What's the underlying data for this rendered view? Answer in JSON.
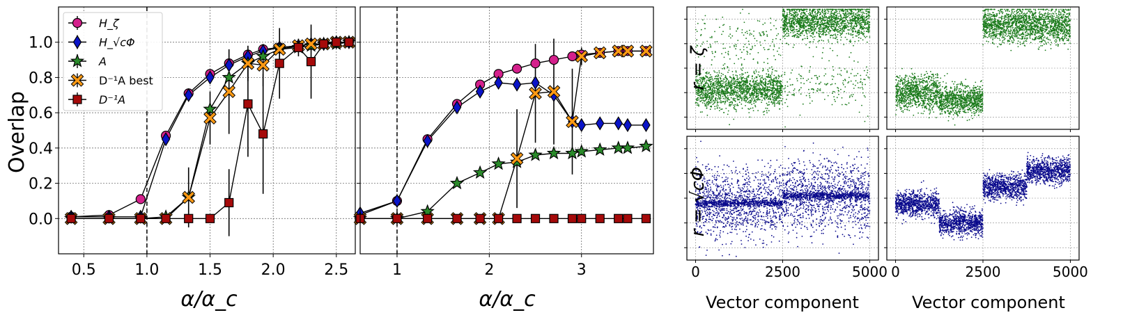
{
  "figure": {
    "ylabel_left": "Overlap",
    "xlabel_left": "α/α_c",
    "xlabel_mid": "α/α_c",
    "xlabel_scatter": "Vector component",
    "row_label_top": "r = ζ",
    "row_label_bottom": "r = √cΦ"
  },
  "legend": {
    "placement": "top-left",
    "entries": [
      {
        "id": "hz",
        "label": "H_ζ",
        "marker": "circle",
        "color": "#d4208c"
      },
      {
        "id": "hphi",
        "label": "H_√cΦ",
        "marker": "diamond",
        "color": "#0a14c8"
      },
      {
        "id": "a",
        "label": "A",
        "marker": "star",
        "color": "#2a8a2a"
      },
      {
        "id": "dab",
        "label": "D⁻¹A best",
        "marker": "x",
        "color": "#ff9a14"
      },
      {
        "id": "da",
        "label": "D⁻¹A",
        "marker": "square",
        "color": "#a50a0a"
      }
    ]
  },
  "chart_data": [
    {
      "type": "line",
      "panel": "left",
      "xlabel": "α/α_c",
      "ylabel": "Overlap",
      "xlim": [
        0.3,
        2.65
      ],
      "ylim": [
        -0.2,
        1.2
      ],
      "xticks": [
        0.5,
        1.0,
        1.5,
        2.0,
        2.5
      ],
      "xtick_labels": [
        "0.5",
        "1.0",
        "1.5",
        "2.0",
        "2.5"
      ],
      "yticks": [
        0.0,
        0.2,
        0.4,
        0.6,
        0.8,
        1.0
      ],
      "ytick_labels": [
        "0.0",
        "0.2",
        "0.4",
        "0.6",
        "0.8",
        "1.0"
      ],
      "grid": true,
      "vline": 1.0,
      "series": [
        {
          "name": "H_ζ",
          "id": "hz",
          "x": [
            0.4,
            0.7,
            0.95,
            1.15,
            1.33,
            1.5,
            1.65,
            1.8,
            1.92,
            2.05,
            2.2,
            2.3,
            2.4,
            2.5,
            2.6
          ],
          "y": [
            0.01,
            0.02,
            0.11,
            0.47,
            0.71,
            0.82,
            0.88,
            0.93,
            0.96,
            0.97,
            0.98,
            0.99,
            0.99,
            1.0,
            1.0
          ]
        },
        {
          "name": "H_√cΦ",
          "id": "hphi",
          "x": [
            0.4,
            0.7,
            0.95,
            1.15,
            1.33,
            1.5,
            1.65,
            1.8,
            1.92,
            2.05,
            2.2,
            2.3,
            2.4,
            2.5,
            2.6
          ],
          "y": [
            0.01,
            0.01,
            0.01,
            0.45,
            0.7,
            0.8,
            0.87,
            0.92,
            0.95,
            0.97,
            0.98,
            0.99,
            0.99,
            1.0,
            1.0
          ]
        },
        {
          "name": "A",
          "id": "a",
          "x": [
            0.4,
            0.7,
            0.95,
            1.15,
            1.33,
            1.5,
            1.65,
            1.8,
            1.92,
            2.05,
            2.2,
            2.3,
            2.4,
            2.5,
            2.6
          ],
          "y": [
            0.0,
            0.0,
            0.0,
            0.01,
            0.12,
            0.62,
            0.8,
            0.88,
            0.92,
            0.96,
            0.97,
            0.98,
            0.99,
            0.99,
            1.0
          ]
        },
        {
          "name": "D⁻¹A best",
          "id": "dab",
          "x": [
            0.4,
            0.7,
            0.95,
            1.15,
            1.33,
            1.5,
            1.65,
            1.8,
            1.92,
            2.05,
            2.2,
            2.3,
            2.4,
            2.5,
            2.6
          ],
          "y": [
            0.0,
            0.0,
            0.0,
            0.0,
            0.12,
            0.57,
            0.72,
            0.88,
            0.87,
            0.96,
            0.98,
            0.99,
            0.99,
            1.0,
            1.0
          ],
          "err": [
            0.01,
            0.0,
            0.0,
            0.0,
            0.17,
            0.15,
            0.24,
            0.1,
            0.12,
            0.05,
            0.02,
            0.02,
            0.01,
            0.01,
            0.0
          ]
        },
        {
          "name": "D⁻¹A",
          "id": "da",
          "x": [
            0.4,
            0.7,
            0.95,
            1.15,
            1.33,
            1.5,
            1.65,
            1.8,
            1.92,
            2.05,
            2.2,
            2.3,
            2.4,
            2.5,
            2.6
          ],
          "y": [
            0.0,
            0.0,
            0.0,
            0.0,
            0.0,
            0.0,
            0.09,
            0.65,
            0.48,
            0.88,
            0.97,
            0.89,
            0.99,
            1.0,
            1.0
          ],
          "err": [
            0.0,
            0.0,
            0.0,
            0.0,
            0.0,
            0.0,
            0.19,
            0.3,
            0.34,
            0.2,
            0.05,
            0.21,
            0.02,
            0.01,
            0.0
          ]
        }
      ]
    },
    {
      "type": "line",
      "panel": "middle",
      "xlabel": "α/α_c",
      "ylabel": "",
      "xlim": [
        0.6,
        3.78
      ],
      "ylim": [
        -0.2,
        1.2
      ],
      "xticks": [
        1,
        2,
        3
      ],
      "xtick_labels": [
        "1",
        "2",
        "3"
      ],
      "yticks": [
        0.0,
        0.2,
        0.4,
        0.6,
        0.8,
        1.0
      ],
      "grid": true,
      "vline": 1.0,
      "series": [
        {
          "name": "H_ζ",
          "id": "hz",
          "x": [
            0.6,
            1.0,
            1.33,
            1.65,
            1.9,
            2.1,
            2.3,
            2.5,
            2.7,
            2.9,
            3.0,
            3.2,
            3.4,
            3.5,
            3.7
          ],
          "y": [
            0.02,
            0.1,
            0.45,
            0.65,
            0.76,
            0.82,
            0.85,
            0.88,
            0.9,
            0.92,
            0.93,
            0.94,
            0.95,
            0.95,
            0.95
          ]
        },
        {
          "name": "H_√cΦ",
          "id": "hphi",
          "x": [
            0.6,
            1.0,
            1.33,
            1.65,
            1.9,
            2.1,
            2.3,
            2.5,
            2.7,
            2.9,
            3.0,
            3.2,
            3.4,
            3.5,
            3.7
          ],
          "y": [
            0.03,
            0.1,
            0.44,
            0.63,
            0.72,
            0.77,
            0.76,
            0.77,
            0.7,
            0.55,
            0.53,
            0.54,
            0.54,
            0.53,
            0.53
          ]
        },
        {
          "name": "A",
          "id": "a",
          "x": [
            0.6,
            1.0,
            1.33,
            1.65,
            1.9,
            2.1,
            2.3,
            2.5,
            2.7,
            2.9,
            3.0,
            3.2,
            3.4,
            3.5,
            3.7
          ],
          "y": [
            0.0,
            0.0,
            0.04,
            0.2,
            0.26,
            0.31,
            0.32,
            0.36,
            0.37,
            0.37,
            0.38,
            0.39,
            0.4,
            0.4,
            0.41
          ]
        },
        {
          "name": "D⁻¹A best",
          "id": "dab",
          "x": [
            0.6,
            1.0,
            1.33,
            1.65,
            1.9,
            2.1,
            2.3,
            2.5,
            2.7,
            2.9,
            3.0,
            3.2,
            3.4,
            3.5,
            3.7
          ],
          "y": [
            0.0,
            0.0,
            0.0,
            0.0,
            0.0,
            0.0,
            0.34,
            0.71,
            0.72,
            0.55,
            0.92,
            0.94,
            0.95,
            0.95,
            0.95
          ],
          "err": [
            0.0,
            0.0,
            0.0,
            0.0,
            0.0,
            0.0,
            0.28,
            0.28,
            0.3,
            0.3,
            0.05,
            0.02,
            0.01,
            0.01,
            0.0
          ]
        },
        {
          "name": "D⁻¹A",
          "id": "da",
          "x": [
            0.6,
            1.0,
            1.33,
            1.65,
            1.9,
            2.1,
            2.3,
            2.5,
            2.7,
            2.9,
            3.0,
            3.2,
            3.4,
            3.5,
            3.7
          ],
          "y": [
            0.0,
            0.0,
            0.0,
            0.0,
            0.0,
            0.0,
            0.0,
            0.0,
            0.0,
            0.0,
            0.0,
            0.0,
            0.0,
            0.0,
            0.0
          ]
        }
      ]
    },
    {
      "type": "scatter",
      "panel": "top-left",
      "row_label": "r = ζ",
      "xlim": [
        -250,
        5250
      ],
      "color": "#1a7a1a",
      "note_segments": [
        {
          "x_range": [
            0,
            2500
          ],
          "center": 0.32,
          "spread": 0.07,
          "outlier_level": 0.72
        },
        {
          "x_range": [
            2500,
            5000
          ],
          "center": 0.88,
          "spread": 0.07,
          "outlier_level": 0.36
        }
      ]
    },
    {
      "type": "scatter",
      "panel": "top-right",
      "xlim": [
        -250,
        5250
      ],
      "color": "#1a7a1a",
      "note_segments": [
        {
          "x_range": [
            0,
            1250
          ],
          "center": 0.3,
          "spread": 0.07
        },
        {
          "x_range": [
            1250,
            2500
          ],
          "center": 0.24,
          "spread": 0.06
        },
        {
          "x_range": [
            2500,
            5000
          ],
          "center": 0.85,
          "spread": 0.07
        }
      ]
    },
    {
      "type": "scatter",
      "panel": "bottom-left",
      "row_label": "r = √cΦ",
      "xlabel": "Vector component",
      "xlim": [
        -250,
        5250
      ],
      "xticks": [
        0,
        2500,
        5000
      ],
      "xtick_labels": [
        "0",
        "2500",
        "5000"
      ],
      "color": "#0a0a8c",
      "note_segments": [
        {
          "x_range": [
            0,
            2500
          ],
          "center": 0.46,
          "spread": 0.14,
          "band": 0.46
        },
        {
          "x_range": [
            2500,
            5000
          ],
          "center": 0.52,
          "spread": 0.14,
          "band": 0.52
        }
      ]
    },
    {
      "type": "scatter",
      "panel": "bottom-right",
      "xlabel": "Vector component",
      "xlim": [
        -250,
        5250
      ],
      "xticks": [
        0,
        2500,
        5000
      ],
      "xtick_labels": [
        "0",
        "2500",
        "5000"
      ],
      "color": "#0a0a8c",
      "note_segments": [
        {
          "x_range": [
            0,
            1250
          ],
          "center": 0.45,
          "spread": 0.05
        },
        {
          "x_range": [
            1250,
            2500
          ],
          "center": 0.3,
          "spread": 0.05
        },
        {
          "x_range": [
            2500,
            3750
          ],
          "center": 0.59,
          "spread": 0.05
        },
        {
          "x_range": [
            3750,
            5000
          ],
          "center": 0.72,
          "spread": 0.05
        }
      ]
    }
  ]
}
